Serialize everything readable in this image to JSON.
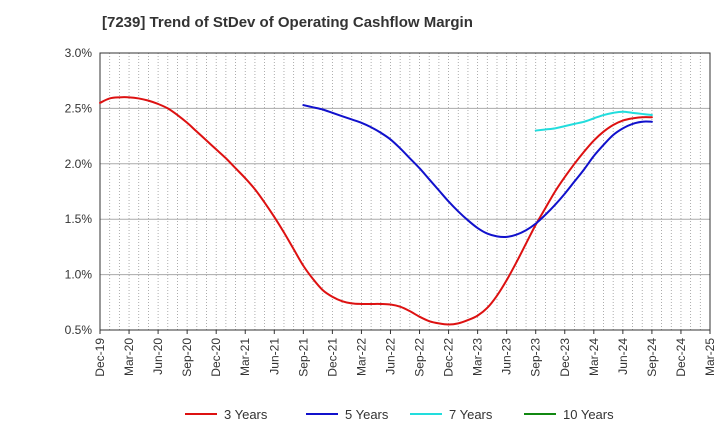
{
  "chart_data": {
    "type": "line",
    "title": "[7239]  Trend of StDev of Operating Cashflow Margin",
    "xlabel": "",
    "ylabel": "",
    "categories": [
      "Dec-19",
      "Mar-20",
      "Jun-20",
      "Sep-20",
      "Dec-20",
      "Mar-21",
      "Jun-21",
      "Sep-21",
      "Dec-21",
      "Mar-22",
      "Jun-22",
      "Sep-22",
      "Dec-22",
      "Mar-23",
      "Jun-23",
      "Sep-23",
      "Dec-23",
      "Mar-24",
      "Jun-24",
      "Sep-24",
      "Dec-24",
      "Mar-25"
    ],
    "y_ticks": [
      "3.0%",
      "2.5%",
      "2.0%",
      "1.5%",
      "1.0%",
      "0.5%"
    ],
    "ylim": [
      0.5,
      3.0
    ],
    "y_unit": "%",
    "grid": "vertical dotted, horizontal solid at labeled ticks",
    "legend_position": "bottom",
    "series": [
      {
        "name": "3 Years",
        "color": "#dd1111",
        "points": [
          [
            "2019-12",
            2.55
          ],
          [
            "2020-01",
            2.59
          ],
          [
            "2020-02",
            2.6
          ],
          [
            "2020-03",
            2.6
          ],
          [
            "2020-04",
            2.59
          ],
          [
            "2020-05",
            2.57
          ],
          [
            "2020-06",
            2.54
          ],
          [
            "2020-07",
            2.5
          ],
          [
            "2020-08",
            2.44
          ],
          [
            "2020-09",
            2.37
          ],
          [
            "2020-10",
            2.29
          ],
          [
            "2020-11",
            2.21
          ],
          [
            "2020-12",
            2.13
          ],
          [
            "2021-01",
            2.05
          ],
          [
            "2021-02",
            1.96
          ],
          [
            "2021-03",
            1.87
          ],
          [
            "2021-04",
            1.77
          ],
          [
            "2021-05",
            1.65
          ],
          [
            "2021-06",
            1.52
          ],
          [
            "2021-07",
            1.38
          ],
          [
            "2021-08",
            1.23
          ],
          [
            "2021-09",
            1.08
          ],
          [
            "2021-10",
            0.96
          ],
          [
            "2021-11",
            0.86
          ],
          [
            "2021-12",
            0.8
          ],
          [
            "2022-01",
            0.76
          ],
          [
            "2022-02",
            0.74
          ],
          [
            "2022-03",
            0.735
          ],
          [
            "2022-04",
            0.735
          ],
          [
            "2022-05",
            0.735
          ],
          [
            "2022-06",
            0.73
          ],
          [
            "2022-07",
            0.71
          ],
          [
            "2022-08",
            0.67
          ],
          [
            "2022-09",
            0.62
          ],
          [
            "2022-10",
            0.58
          ],
          [
            "2022-11",
            0.56
          ],
          [
            "2022-12",
            0.55
          ],
          [
            "2023-01",
            0.56
          ],
          [
            "2023-02",
            0.59
          ],
          [
            "2023-03",
            0.63
          ],
          [
            "2023-04",
            0.7
          ],
          [
            "2023-05",
            0.81
          ],
          [
            "2023-06",
            0.95
          ],
          [
            "2023-07",
            1.11
          ],
          [
            "2023-08",
            1.28
          ],
          [
            "2023-09",
            1.45
          ],
          [
            "2023-10",
            1.6
          ],
          [
            "2023-11",
            1.75
          ],
          [
            "2023-12",
            1.88
          ],
          [
            "2024-01",
            2.0
          ],
          [
            "2024-02",
            2.11
          ],
          [
            "2024-03",
            2.21
          ],
          [
            "2024-04",
            2.29
          ],
          [
            "2024-05",
            2.35
          ],
          [
            "2024-06",
            2.39
          ],
          [
            "2024-07",
            2.41
          ],
          [
            "2024-08",
            2.42
          ],
          [
            "2024-09",
            2.42
          ]
        ]
      },
      {
        "name": "5 Years",
        "color": "#1111cc",
        "points": [
          [
            "2021-09",
            2.53
          ],
          [
            "2021-10",
            2.51
          ],
          [
            "2021-11",
            2.49
          ],
          [
            "2021-12",
            2.46
          ],
          [
            "2022-01",
            2.43
          ],
          [
            "2022-02",
            2.4
          ],
          [
            "2022-03",
            2.37
          ],
          [
            "2022-04",
            2.33
          ],
          [
            "2022-05",
            2.28
          ],
          [
            "2022-06",
            2.22
          ],
          [
            "2022-07",
            2.14
          ],
          [
            "2022-08",
            2.05
          ],
          [
            "2022-09",
            1.96
          ],
          [
            "2022-10",
            1.86
          ],
          [
            "2022-11",
            1.76
          ],
          [
            "2022-12",
            1.66
          ],
          [
            "2023-01",
            1.57
          ],
          [
            "2023-02",
            1.49
          ],
          [
            "2023-03",
            1.42
          ],
          [
            "2023-04",
            1.37
          ],
          [
            "2023-05",
            1.345
          ],
          [
            "2023-06",
            1.34
          ],
          [
            "2023-07",
            1.36
          ],
          [
            "2023-08",
            1.4
          ],
          [
            "2023-09",
            1.46
          ],
          [
            "2023-10",
            1.54
          ],
          [
            "2023-11",
            1.63
          ],
          [
            "2023-12",
            1.73
          ],
          [
            "2024-01",
            1.84
          ],
          [
            "2024-02",
            1.95
          ],
          [
            "2024-03",
            2.07
          ],
          [
            "2024-04",
            2.17
          ],
          [
            "2024-05",
            2.26
          ],
          [
            "2024-06",
            2.32
          ],
          [
            "2024-07",
            2.36
          ],
          [
            "2024-08",
            2.38
          ],
          [
            "2024-09",
            2.38
          ]
        ]
      },
      {
        "name": "7 Years",
        "color": "#22dddd",
        "points": [
          [
            "2023-09",
            2.3
          ],
          [
            "2023-10",
            2.31
          ],
          [
            "2023-11",
            2.32
          ],
          [
            "2023-12",
            2.34
          ],
          [
            "2024-01",
            2.36
          ],
          [
            "2024-02",
            2.38
          ],
          [
            "2024-03",
            2.41
          ],
          [
            "2024-04",
            2.44
          ],
          [
            "2024-05",
            2.46
          ],
          [
            "2024-06",
            2.47
          ],
          [
            "2024-07",
            2.46
          ],
          [
            "2024-08",
            2.45
          ],
          [
            "2024-09",
            2.44
          ]
        ]
      },
      {
        "name": "10 Years",
        "color": "#118811",
        "points": []
      }
    ]
  }
}
